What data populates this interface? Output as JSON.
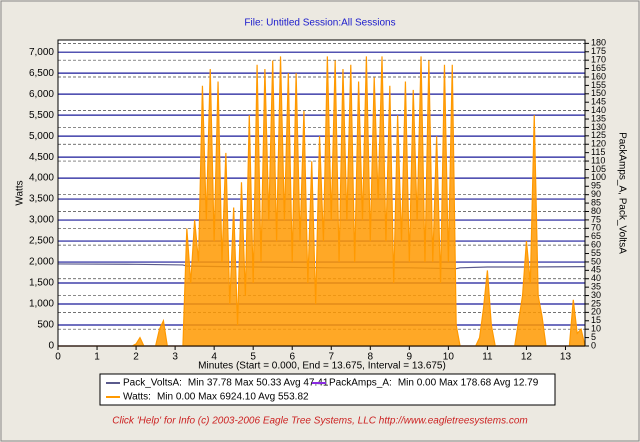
{
  "chart_data": {
    "type": "line",
    "title": "File: Untitled   Session:All Sessions",
    "xlabel": "Minutes (Start = 0.000,  End = 13.675,  Interval =  13.675)",
    "ylabel": "Watts",
    "y2label": "PackAmps_A, Pack_VoltsA",
    "footer": "Click 'Help' for Info  (c) 2003-2006 Eagle Tree Systems, LLC     http://www.eagletreesystems.com",
    "xlim": [
      0,
      13.5
    ],
    "xticks": [
      0,
      1,
      2,
      3,
      4,
      5,
      6,
      7,
      8,
      9,
      10,
      11,
      12,
      13
    ],
    "ylim": [
      0,
      7290
    ],
    "yticks": [
      0,
      500,
      {
        "value": 1000,
        "label": "1,000"
      },
      {
        "value": 1500,
        "label": "1,500"
      },
      {
        "value": 2000,
        "label": "2,000"
      },
      {
        "value": 2500,
        "label": "2,500"
      },
      {
        "value": 3000,
        "label": "3,000"
      },
      {
        "value": 3500,
        "label": "3,500"
      },
      {
        "value": 4000,
        "label": "4,000"
      },
      {
        "value": 4500,
        "label": "4,500"
      },
      {
        "value": 5000,
        "label": "5,000"
      },
      {
        "value": 5500,
        "label": "5,500"
      },
      {
        "value": 6000,
        "label": "6,000"
      },
      {
        "value": 6500,
        "label": "6,500"
      },
      {
        "value": 7000,
        "label": "7,000"
      }
    ],
    "y2lim": [
      0,
      182
    ],
    "y2ticks": [
      0,
      5,
      10,
      15,
      20,
      25,
      30,
      35,
      40,
      45,
      50,
      55,
      60,
      65,
      70,
      75,
      80,
      85,
      90,
      95,
      100,
      105,
      110,
      115,
      120,
      125,
      130,
      135,
      140,
      145,
      150,
      155,
      160,
      165,
      170,
      175,
      180
    ],
    "grid": true,
    "series": [
      {
        "name": "Pack_VoltsA:",
        "summary": "Min 37.78  Max 50.33  Avg 47.41",
        "color": "#5a5a8c",
        "axis": "y2",
        "x": [
          0,
          2,
          3.2,
          3.3,
          5,
          7,
          9,
          10.2,
          10.3,
          11,
          12,
          13.5
        ],
        "values": [
          48.8,
          48.6,
          48.2,
          47.5,
          47,
          46.5,
          46.5,
          46,
          46.5,
          47,
          47,
          47.2
        ]
      },
      {
        "name": "PackAmps_A:",
        "summary": "Min 0.00  Max 178.68  Avg 12.79",
        "color": "#8a2be2",
        "axis": "y2"
      },
      {
        "name": "Watts:",
        "summary": "Min 0.00  Max 6924.10  Avg 553.82",
        "color": "#ff9900",
        "x": [
          0,
          1.9,
          2.0,
          2.1,
          2.2,
          2.5,
          2.6,
          2.7,
          2.8,
          3.2,
          3.3,
          3.4,
          3.5,
          3.6,
          3.7,
          3.8,
          3.9,
          4.0,
          4.1,
          4.2,
          4.3,
          4.4,
          4.5,
          4.6,
          4.7,
          4.8,
          4.9,
          5.0,
          5.1,
          5.2,
          5.3,
          5.4,
          5.5,
          5.6,
          5.7,
          5.8,
          5.9,
          6.0,
          6.1,
          6.2,
          6.3,
          6.4,
          6.5,
          6.6,
          6.7,
          6.8,
          6.9,
          7.0,
          7.1,
          7.2,
          7.3,
          7.4,
          7.5,
          7.6,
          7.7,
          7.8,
          7.9,
          8.0,
          8.1,
          8.2,
          8.3,
          8.4,
          8.5,
          8.6,
          8.7,
          8.8,
          8.9,
          9.0,
          9.1,
          9.2,
          9.3,
          9.4,
          9.5,
          9.6,
          9.7,
          9.8,
          9.9,
          10.0,
          10.1,
          10.2,
          10.3,
          10.7,
          10.8,
          10.9,
          11.0,
          11.1,
          11.2,
          11.7,
          11.8,
          11.9,
          12.0,
          12.1,
          12.2,
          12.3,
          12.4,
          12.5,
          13.1,
          13.2,
          13.3,
          13.4,
          13.5
        ],
        "values": [
          0,
          0,
          50,
          200,
          0,
          0,
          400,
          600,
          0,
          0,
          2800,
          1500,
          3000,
          2000,
          6200,
          3000,
          6600,
          2500,
          6300,
          2000,
          4600,
          1000,
          3300,
          500,
          3900,
          1200,
          5500,
          1500,
          6700,
          2000,
          6600,
          3000,
          6800,
          2500,
          6900,
          3000,
          6500,
          2000,
          6500,
          2500,
          5600,
          1500,
          4400,
          1000,
          5000,
          2500,
          6900,
          3000,
          6800,
          2000,
          6600,
          3000,
          6700,
          2000,
          6300,
          3000,
          6900,
          2500,
          6400,
          3500,
          6900,
          2500,
          6200,
          1500,
          5500,
          2500,
          6300,
          2000,
          6100,
          3000,
          6900,
          2000,
          6800,
          2000,
          5000,
          1500,
          6700,
          2000,
          6700,
          500,
          0,
          0,
          200,
          900,
          1800,
          500,
          0,
          0,
          600,
          1200,
          2500,
          1500,
          5500,
          1200,
          700,
          0,
          0,
          1100,
          300,
          400,
          0
        ]
      }
    ]
  }
}
